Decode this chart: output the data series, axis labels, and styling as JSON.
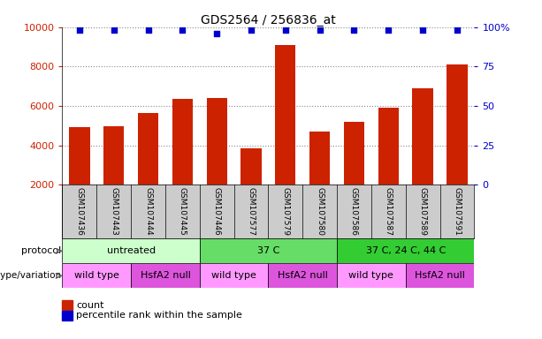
{
  "title": "GDS2564 / 256836_at",
  "samples": [
    "GSM107436",
    "GSM107443",
    "GSM107444",
    "GSM107445",
    "GSM107446",
    "GSM107577",
    "GSM107579",
    "GSM107580",
    "GSM107586",
    "GSM107587",
    "GSM107589",
    "GSM107591"
  ],
  "counts": [
    4900,
    4950,
    5650,
    6350,
    6400,
    3850,
    9100,
    4700,
    5200,
    5900,
    6900,
    8100
  ],
  "percentiles": [
    98,
    98,
    98,
    98,
    96,
    98,
    98,
    98,
    98,
    98,
    98,
    98
  ],
  "bar_color": "#cc2200",
  "dot_color": "#0000cc",
  "ylim_left": [
    2000,
    10000
  ],
  "ylim_right": [
    0,
    100
  ],
  "yticks_left": [
    2000,
    4000,
    6000,
    8000,
    10000
  ],
  "yticks_right": [
    0,
    25,
    50,
    75,
    100
  ],
  "yticklabels_right": [
    "0",
    "25",
    "50",
    "75",
    "100%"
  ],
  "protocol_groups": [
    {
      "label": "untreated",
      "start": 0,
      "end": 4,
      "color": "#ccffcc"
    },
    {
      "label": "37 C",
      "start": 4,
      "end": 8,
      "color": "#66dd66"
    },
    {
      "label": "37 C, 24 C, 44 C",
      "start": 8,
      "end": 12,
      "color": "#33cc33"
    }
  ],
  "genotype_groups": [
    {
      "label": "wild type",
      "start": 0,
      "end": 2,
      "color": "#ff99ff"
    },
    {
      "label": "HsfA2 null",
      "start": 2,
      "end": 4,
      "color": "#dd55dd"
    },
    {
      "label": "wild type",
      "start": 4,
      "end": 6,
      "color": "#ff99ff"
    },
    {
      "label": "HsfA2 null",
      "start": 6,
      "end": 8,
      "color": "#dd55dd"
    },
    {
      "label": "wild type",
      "start": 8,
      "end": 10,
      "color": "#ff99ff"
    },
    {
      "label": "HsfA2 null",
      "start": 10,
      "end": 12,
      "color": "#dd55dd"
    }
  ],
  "label_protocol": "protocol",
  "label_genotype": "genotype/variation",
  "legend_count": "count",
  "legend_pct": "percentile rank within the sample",
  "title_fontsize": 10,
  "axis_label_color_left": "#cc2200",
  "axis_label_color_right": "#0000cc",
  "sample_row_color": "#cccccc"
}
